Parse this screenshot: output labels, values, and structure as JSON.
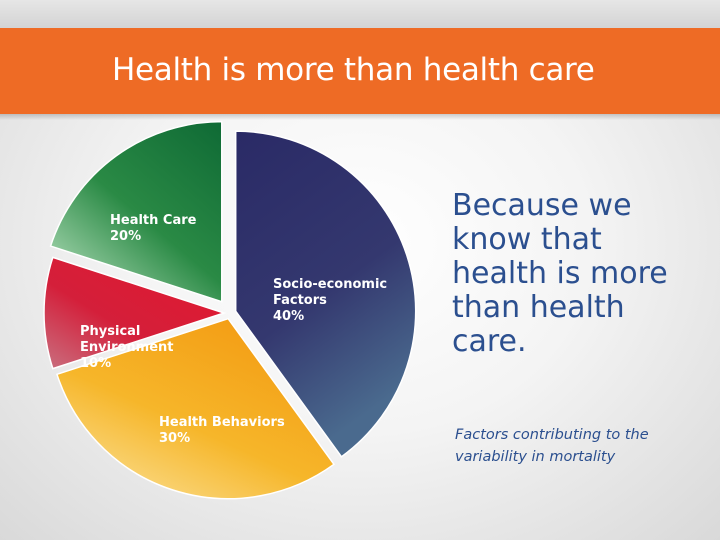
{
  "slide": {
    "title": "Health is more than health care",
    "body_text": "Because we know that health is more than health care.",
    "caption": "Factors contributing to the variability in mortality"
  },
  "chart_data": {
    "type": "pie",
    "title": "",
    "slices": [
      {
        "label": "Socio-economic Factors",
        "value": 40,
        "value_label": "40%",
        "color": "#2e2f6a"
      },
      {
        "label": "Health Behaviors",
        "value": 30,
        "value_label": "30%",
        "color": "#f5a318"
      },
      {
        "label": "Physical Environment",
        "value": 10,
        "value_label": "10%",
        "color": "#d91f36"
      },
      {
        "label": "Health Care",
        "value": 20,
        "value_label": "20%",
        "color": "#1f7a3e"
      }
    ]
  }
}
